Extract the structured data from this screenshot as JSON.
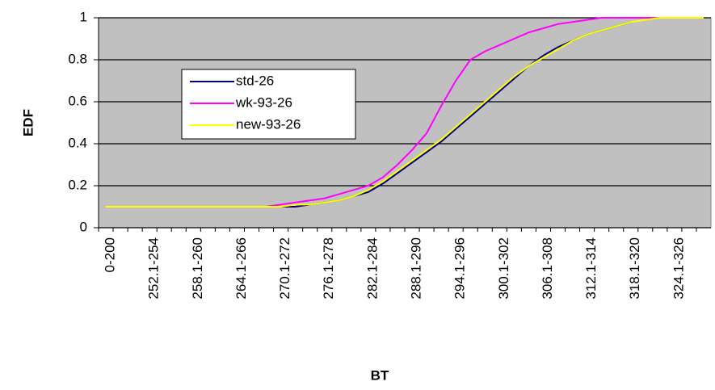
{
  "chart_data": {
    "type": "line",
    "xlabel": "BT",
    "ylabel": "EDF",
    "categories": [
      "0-200",
      null,
      null,
      "252.1-254",
      null,
      null,
      "258.1-260",
      null,
      null,
      "264.1-266",
      null,
      null,
      "270.1-272",
      null,
      null,
      "276.1-278",
      null,
      null,
      "282.1-284",
      null,
      null,
      "288.1-290",
      null,
      null,
      "294.1-296",
      null,
      null,
      "300.1-302",
      null,
      null,
      "306.1-308",
      null,
      null,
      "312.1-314",
      null,
      null,
      "318.1-320",
      null,
      null,
      "324.1-326",
      null,
      null
    ],
    "series": [
      {
        "name": "std-26",
        "color": "#000080",
        "values": [
          null,
          null,
          null,
          null,
          null,
          null,
          null,
          null,
          null,
          null,
          null,
          null,
          0.1,
          0.1,
          0.11,
          0.12,
          0.13,
          0.15,
          0.17,
          0.21,
          0.26,
          0.31,
          0.36,
          0.41,
          0.47,
          0.53,
          0.59,
          0.65,
          0.71,
          0.77,
          0.82,
          0.86,
          0.89,
          0.92,
          0.94,
          0.96,
          0.98,
          null,
          null,
          null,
          null,
          null
        ]
      },
      {
        "name": "wk-93-26",
        "color": "#ff00ff",
        "values": [
          null,
          null,
          null,
          null,
          null,
          null,
          null,
          null,
          null,
          null,
          0.1,
          0.1,
          0.11,
          0.12,
          0.13,
          0.14,
          0.16,
          0.18,
          0.2,
          0.24,
          0.3,
          0.37,
          0.45,
          0.58,
          0.7,
          0.8,
          0.84,
          0.87,
          0.9,
          0.93,
          0.95,
          0.97,
          0.98,
          0.99,
          1,
          1,
          1,
          1,
          1,
          null,
          null,
          null
        ]
      },
      {
        "name": "new-93-26",
        "color": "#ffff00",
        "values": [
          0.1,
          0.1,
          0.1,
          0.1,
          0.1,
          0.1,
          0.1,
          0.1,
          0.1,
          0.1,
          0.1,
          0.1,
          0.1,
          0.11,
          0.11,
          0.12,
          0.13,
          0.15,
          0.18,
          0.22,
          0.27,
          0.32,
          0.37,
          0.42,
          0.48,
          0.54,
          0.6,
          0.66,
          0.72,
          0.77,
          0.81,
          0.85,
          0.89,
          0.92,
          0.94,
          0.96,
          0.98,
          0.99,
          1,
          1,
          1,
          1
        ]
      }
    ],
    "ylim": [
      0,
      1
    ],
    "yticks": [
      0,
      0.2,
      0.4,
      0.6,
      0.8,
      1
    ],
    "grid": true
  }
}
